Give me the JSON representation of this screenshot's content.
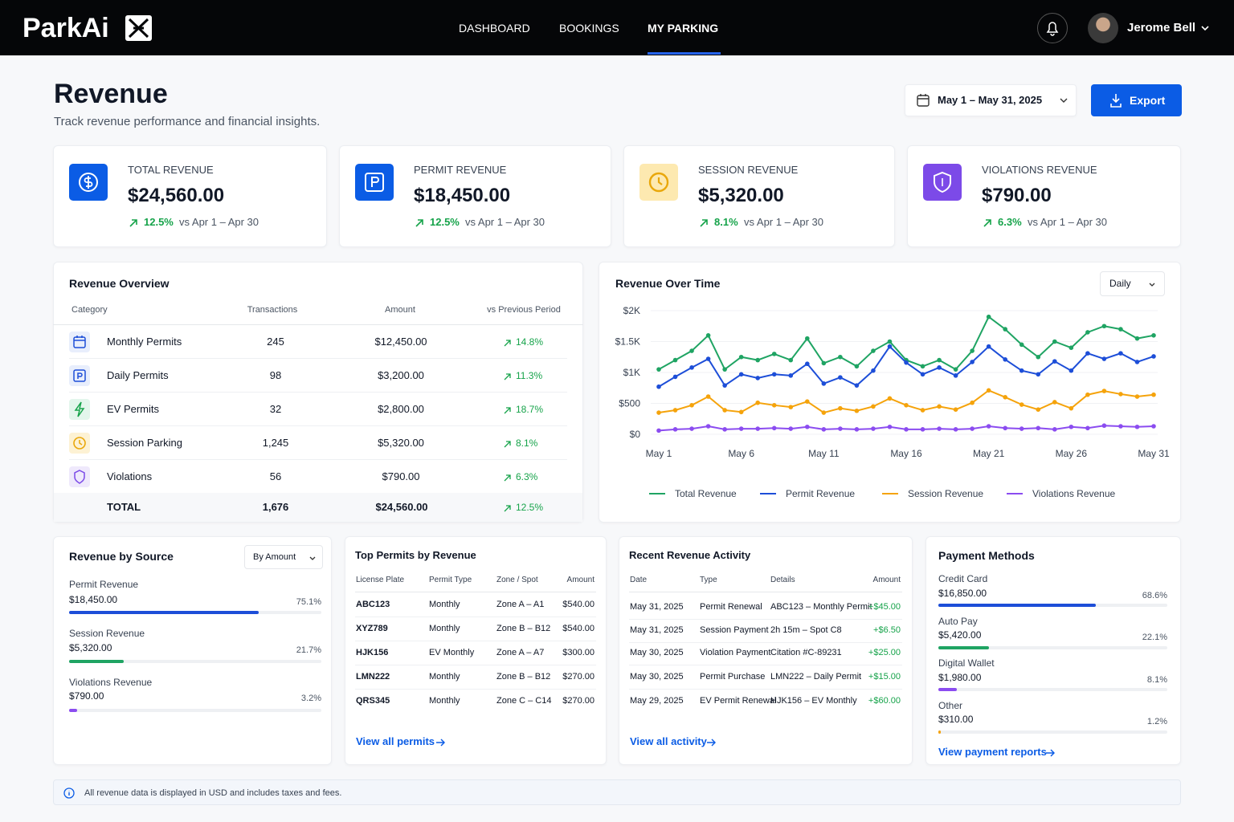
{
  "header": {
    "logo": "ParkAi",
    "nav": [
      "DASHBOARD",
      "BOOKINGS",
      "MY PARKING"
    ],
    "user": "Jerome Bell"
  },
  "page": {
    "title": "Revenue",
    "subtitle": "Track revenue performance and financial insights.",
    "date_range": "May 1 – May 31, 2025",
    "export": "Export"
  },
  "kpis": [
    {
      "label": "TOTAL REVENUE",
      "value": "$24,560.00",
      "change": "12.5%",
      "compare": "vs Apr 1 – Apr 30"
    },
    {
      "label": "PERMIT REVENUE",
      "value": "$18,450.00",
      "change": "12.5%",
      "compare": "vs Apr 1 – Apr 30"
    },
    {
      "label": "SESSION REVENUE",
      "value": "$5,320.00",
      "change": "8.1%",
      "compare": "vs Apr 1 – Apr 30"
    },
    {
      "label": "VIOLATIONS REVENUE",
      "value": "$790.00",
      "change": "6.3%",
      "compare": "vs Apr 1 – Apr 30"
    }
  ],
  "overview": {
    "title": "Revenue Overview",
    "columns": [
      "Category",
      "Transactions",
      "Amount",
      "vs Previous Period"
    ],
    "rows": [
      [
        "Monthly Permits",
        "245",
        "$12,450.00",
        "14.8%"
      ],
      [
        "Daily Permits",
        "98",
        "$3,200.00",
        "11.3%"
      ],
      [
        "EV Permits",
        "32",
        "$2,800.00",
        "18.7%"
      ],
      [
        "Session Parking",
        "1,245",
        "$5,320.00",
        "8.1%"
      ],
      [
        "Violations",
        "56",
        "$790.00",
        "6.3%"
      ]
    ],
    "total": [
      "TOTAL",
      "1,676",
      "$24,560.00",
      "12.5%"
    ]
  },
  "chart_data": {
    "type": "line",
    "title": "Revenue Over Time",
    "period": "Daily",
    "categories": [
      "May 1",
      null,
      null,
      null,
      null,
      "May 6",
      null,
      null,
      null,
      null,
      "May 11",
      null,
      null,
      null,
      null,
      "May 16",
      null,
      null,
      null,
      null,
      "May 21",
      null,
      null,
      null,
      null,
      "May 26",
      null,
      null,
      null,
      null,
      "May 31"
    ],
    "ylim": [
      0,
      2000
    ],
    "yticks": [
      {
        "value": 0,
        "label": "$0"
      },
      {
        "value": 500,
        "label": "$500"
      },
      {
        "value": 1000,
        "label": "$1K"
      },
      {
        "value": 1500,
        "label": "$1.5K"
      },
      {
        "value": 2000,
        "label": "$2K"
      }
    ],
    "series": [
      {
        "name": "Total Revenue",
        "color": "#1fa463",
        "values": [
          1050,
          1200,
          1350,
          1600,
          1050,
          1250,
          1200,
          1300,
          1200,
          1550,
          1150,
          1250,
          1100,
          1350,
          1500,
          1200,
          1100,
          1200,
          1050,
          1350,
          1900,
          1700,
          1450,
          1250,
          1500,
          1400,
          1650,
          1750,
          1700,
          1550,
          1600
        ]
      },
      {
        "name": "Permit Revenue",
        "color": "#1d4ed8",
        "values": [
          770,
          930,
          1080,
          1220,
          790,
          970,
          910,
          970,
          950,
          1140,
          820,
          920,
          790,
          1030,
          1420,
          1160,
          970,
          1080,
          950,
          1170,
          1420,
          1210,
          1030,
          970,
          1180,
          1030,
          1310,
          1220,
          1310,
          1170,
          1260
        ]
      },
      {
        "name": "Session Revenue",
        "color": "#f5a30b",
        "values": [
          350,
          390,
          470,
          610,
          390,
          360,
          510,
          470,
          440,
          530,
          350,
          420,
          380,
          450,
          580,
          470,
          390,
          450,
          400,
          510,
          710,
          600,
          480,
          400,
          520,
          420,
          640,
          700,
          650,
          610,
          640
        ]
      },
      {
        "name": "Violations Revenue",
        "color": "#8b4cf0",
        "values": [
          60,
          80,
          90,
          130,
          80,
          90,
          90,
          100,
          90,
          120,
          80,
          90,
          80,
          90,
          120,
          80,
          80,
          90,
          80,
          90,
          130,
          100,
          90,
          100,
          80,
          120,
          100,
          140,
          130,
          120,
          130
        ]
      }
    ]
  },
  "by_source": {
    "title": "Revenue by Source",
    "sort": "By Amount",
    "items": [
      {
        "label": "Permit Revenue",
        "amount": "$18,450.00",
        "share": 75.1,
        "share_label": "75.1%",
        "color": "#1d4ed8"
      },
      {
        "label": "Session Revenue",
        "amount": "$5,320.00",
        "share": 21.7,
        "share_label": "21.7%",
        "color": "#1fa463"
      },
      {
        "label": "Violations Revenue",
        "amount": "$790.00",
        "share": 3.2,
        "share_label": "3.2%",
        "color": "#8b4cf0"
      }
    ]
  },
  "top_permits": {
    "title": "Top Permits by Revenue",
    "columns": [
      "License Plate",
      "Permit Type",
      "Zone / Spot",
      "Amount"
    ],
    "rows": [
      [
        "ABC123",
        "Monthly",
        "Zone A – A1",
        "$540.00"
      ],
      [
        "XYZ789",
        "Monthly",
        "Zone B – B12",
        "$540.00"
      ],
      [
        "HJK156",
        "EV Monthly",
        "Zone A – A7",
        "$300.00"
      ],
      [
        "LMN222",
        "Monthly",
        "Zone B – B12",
        "$270.00"
      ],
      [
        "QRS345",
        "Monthly",
        "Zone C – C14",
        "$270.00"
      ]
    ],
    "link": "View all permits"
  },
  "activity": {
    "title": "Recent Revenue Activity",
    "columns": [
      "Date",
      "Type",
      "Details",
      "Amount"
    ],
    "rows": [
      [
        "May 31, 2025",
        "Permit Renewal",
        "ABC123 – Monthly Permit",
        "+$45.00"
      ],
      [
        "May 31, 2025",
        "Session Payment",
        "2h 15m – Spot C8",
        "+$6.50"
      ],
      [
        "May 30, 2025",
        "Violation Payment",
        "Citation #C-89231",
        "+$25.00"
      ],
      [
        "May 30, 2025",
        "Permit Purchase",
        "LMN222 – Daily Permit",
        "+$15.00"
      ],
      [
        "May 29, 2025",
        "EV Permit Renewal",
        "HJK156 – EV Monthly",
        "+$60.00"
      ]
    ],
    "link": "View all activity"
  },
  "payment_methods": {
    "title": "Payment Methods",
    "items": [
      {
        "label": "Credit Card",
        "amount": "$16,850.00",
        "share": 68.6,
        "share_label": "68.6%",
        "color": "#1d4ed8"
      },
      {
        "label": "Auto Pay",
        "amount": "$5,420.00",
        "share": 22.1,
        "share_label": "22.1%",
        "color": "#1fa463"
      },
      {
        "label": "Digital Wallet",
        "amount": "$1,980.00",
        "share": 8.1,
        "share_label": "8.1%",
        "color": "#8b4cf0"
      },
      {
        "label": "Other",
        "amount": "$310.00",
        "share": 1.2,
        "share_label": "1.2%",
        "color": "#f5a30b"
      }
    ],
    "link": "View payment reports"
  },
  "footer_note": "All revenue data is displayed in USD and includes taxes and fees."
}
